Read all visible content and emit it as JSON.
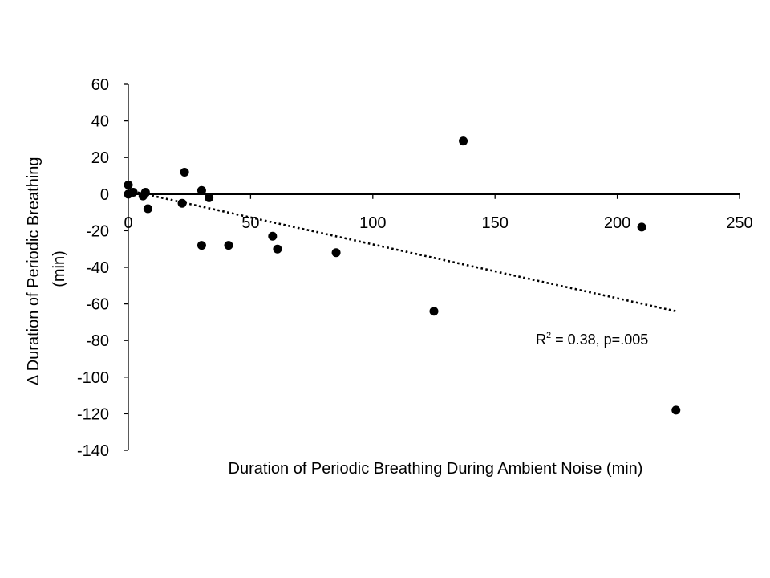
{
  "chart_data": {
    "type": "scatter",
    "title": "",
    "xlabel": "Duration of Periodic Breathing During Ambient Noise (min)",
    "ylabel_lines": [
      "Δ Duration of Periodic Breathing",
      "(min)"
    ],
    "xlim": [
      0,
      250
    ],
    "ylim": [
      -140,
      60
    ],
    "x_ticks": [
      0,
      50,
      100,
      150,
      200,
      250
    ],
    "y_ticks": [
      60,
      40,
      20,
      0,
      -20,
      -40,
      -60,
      -80,
      -100,
      -120,
      -140
    ],
    "grid": false,
    "legend": "none",
    "marker_color": "#000000",
    "series": [
      {
        "points": [
          {
            "x": 0,
            "y": 5
          },
          {
            "x": 0,
            "y": 0
          },
          {
            "x": 2,
            "y": 1
          },
          {
            "x": 6,
            "y": -1
          },
          {
            "x": 7,
            "y": 1
          },
          {
            "x": 8,
            "y": -8
          },
          {
            "x": 22,
            "y": -5
          },
          {
            "x": 23,
            "y": 12
          },
          {
            "x": 30,
            "y": 2
          },
          {
            "x": 30,
            "y": -28
          },
          {
            "x": 33,
            "y": -2
          },
          {
            "x": 41,
            "y": -28
          },
          {
            "x": 59,
            "y": -23
          },
          {
            "x": 61,
            "y": -30
          },
          {
            "x": 85,
            "y": -32
          },
          {
            "x": 125,
            "y": -64
          },
          {
            "x": 137,
            "y": 29
          },
          {
            "x": 210,
            "y": -18
          },
          {
            "x": 224,
            "y": -118
          }
        ]
      }
    ],
    "trendline": {
      "type": "linear",
      "style": "dotted",
      "x": [
        0,
        224
      ],
      "y": [
        2,
        -64
      ]
    },
    "annotation": {
      "prefix": "R",
      "superscript": "2",
      "suffix": " = 0.38, p=.005"
    }
  }
}
